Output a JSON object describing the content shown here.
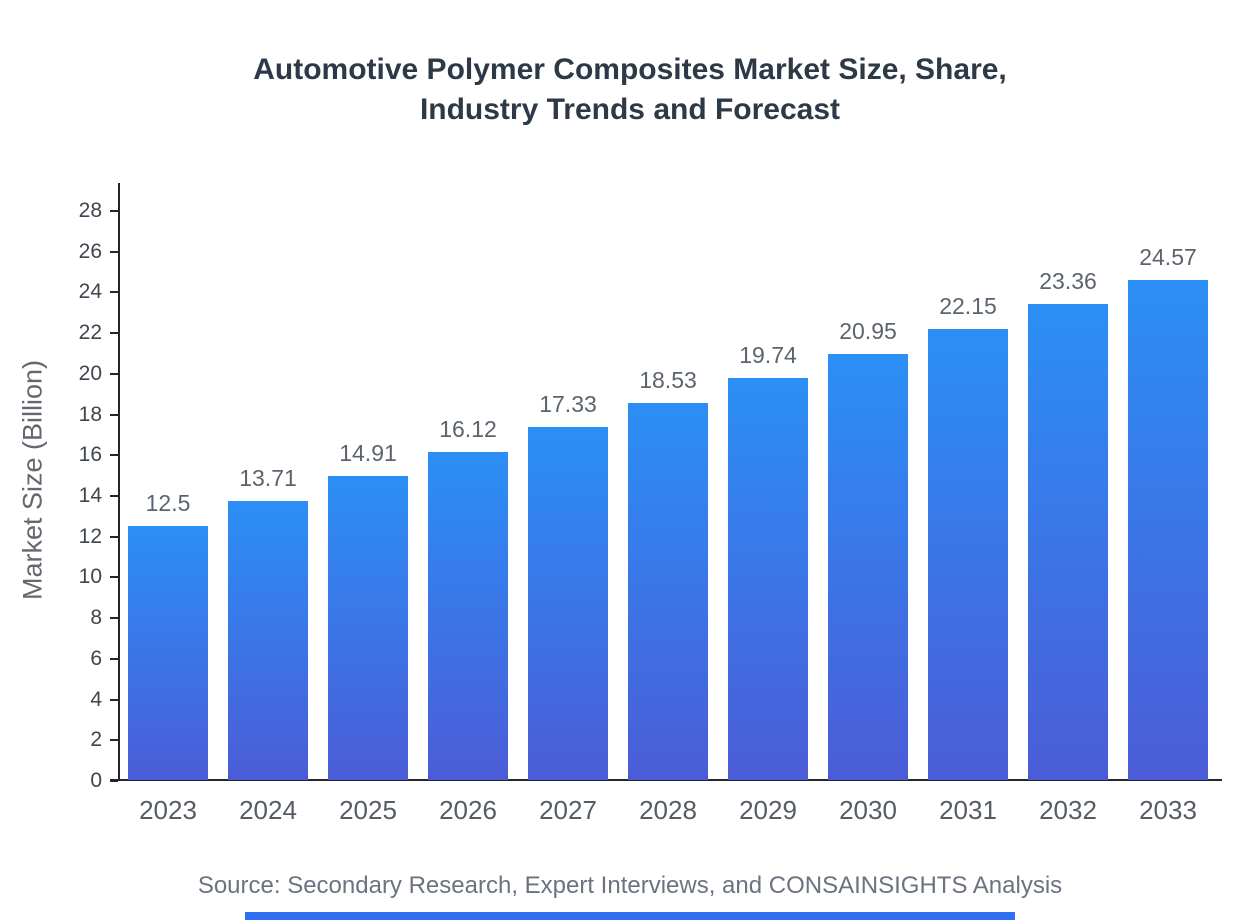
{
  "chart_data": {
    "type": "bar",
    "title": "Automotive Polymer Composites Market Size, Share, Industry Trends and Forecast",
    "xlabel": "",
    "ylabel": "Market Size (Billion)",
    "categories": [
      "2023",
      "2024",
      "2025",
      "2026",
      "2027",
      "2028",
      "2029",
      "2030",
      "2031",
      "2032",
      "2033"
    ],
    "values": [
      12.5,
      13.71,
      14.91,
      16.12,
      17.33,
      18.53,
      19.74,
      20.95,
      22.15,
      23.36,
      24.57
    ],
    "ylim": [
      0,
      28
    ],
    "ytick_step": 2,
    "grid": false,
    "legend": false,
    "bar_gradient_top": "#2b8ff6",
    "bar_gradient_bottom": "#4b5cd6",
    "axis_color": "#23262c",
    "accent_color": "#2f6ff2",
    "source": "Source: Secondary Research, Expert Interviews, and CONSAINSIGHTS Analysis"
  }
}
